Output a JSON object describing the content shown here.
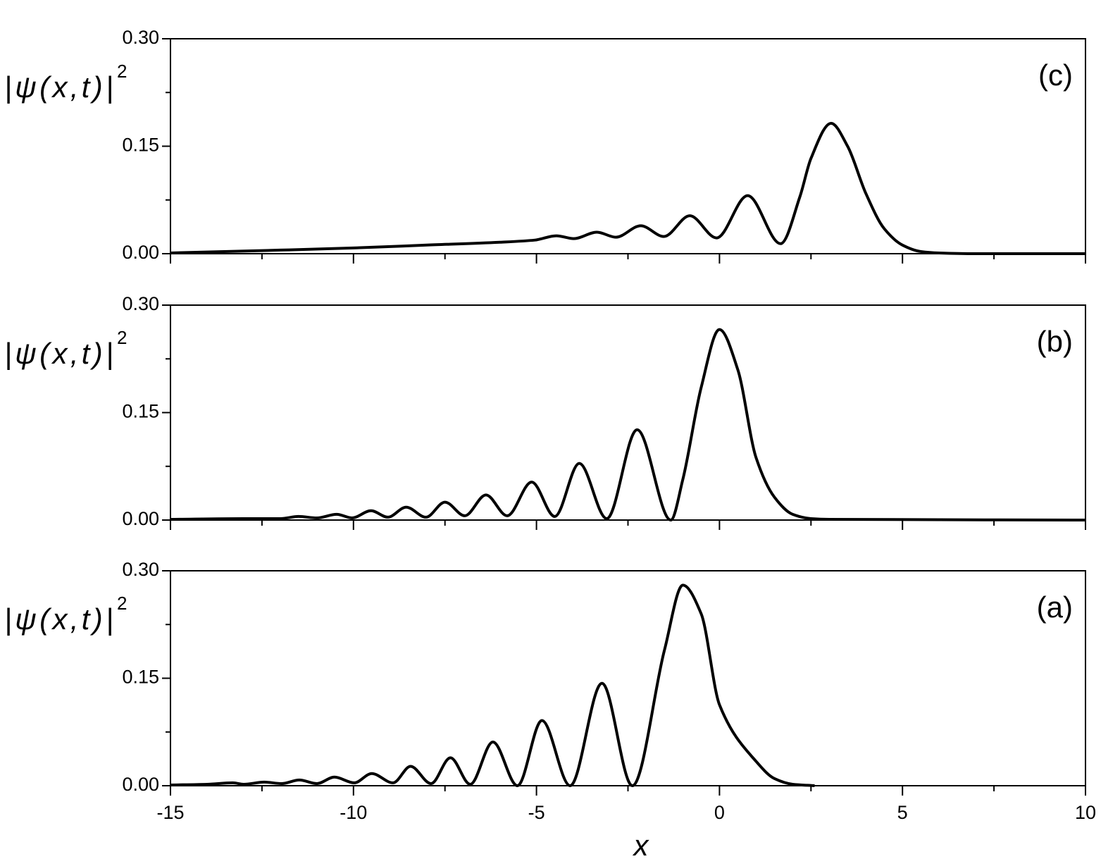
{
  "chart_data": [
    {
      "type": "line",
      "panel_label": "(c)",
      "y_label": "|ψ(x,t)|",
      "y_label_sup": "2",
      "color": "#000000",
      "xlim": [
        -15,
        10
      ],
      "xticks": [
        -15,
        -10,
        -5,
        0,
        5,
        10
      ],
      "xminor": [
        -12.5,
        -7.5,
        -2.5,
        2.5,
        7.5
      ],
      "xtick_labels": false,
      "ylim": [
        0,
        0.3
      ],
      "yticks": [
        {
          "value": 0,
          "label": "0.00"
        },
        {
          "value": 0.15,
          "label": "0.15"
        },
        {
          "value": 0.3,
          "label": "0.30"
        }
      ],
      "yminor": [
        0.075,
        0.225
      ],
      "x": [
        -15,
        -12,
        -10,
        -8,
        -6,
        -5.04,
        -4.46,
        -3.98,
        -3.35,
        -2.83,
        -2.15,
        -1.52,
        -0.81,
        -0.08,
        0.77,
        1.67,
        2.2,
        2.5,
        3.05,
        3.5,
        4,
        4.5,
        5,
        5.5,
        6,
        7,
        10
      ],
      "values": [
        0.001,
        0.005,
        0.008,
        0.012,
        0.016,
        0.019,
        0.025,
        0.021,
        0.03,
        0.023,
        0.039,
        0.024,
        0.053,
        0.022,
        0.081,
        0.014,
        0.08,
        0.133,
        0.182,
        0.15,
        0.084,
        0.035,
        0.012,
        0.003,
        0.001,
        0,
        0
      ]
    },
    {
      "type": "line",
      "panel_label": "(b)",
      "y_label": "|ψ(x,t)|",
      "y_label_sup": "2",
      "color": "#000000",
      "xlim": [
        -15,
        10
      ],
      "xticks": [
        -15,
        -10,
        -5,
        0,
        5,
        10
      ],
      "xminor": [
        -12.5,
        -7.5,
        -2.5,
        2.5,
        7.5
      ],
      "xtick_labels": false,
      "ylim": [
        0,
        0.3
      ],
      "yticks": [
        {
          "value": 0,
          "label": "0.00"
        },
        {
          "value": 0.15,
          "label": "0.15"
        },
        {
          "value": 0.3,
          "label": "0.30"
        }
      ],
      "yminor": [
        0.075,
        0.225
      ],
      "x": [
        -15,
        -13,
        -12,
        -11.5,
        -11,
        -10.46,
        -10.04,
        -9.52,
        -9.06,
        -8.56,
        -8.02,
        -7.5,
        -6.96,
        -6.38,
        -5.8,
        -5.13,
        -4.5,
        -3.83,
        -3.08,
        -2.25,
        -1.33,
        -1,
        -0.5,
        0,
        0.5,
        1,
        1.5,
        2,
        2.5,
        3,
        10
      ],
      "values": [
        0.001,
        0.002,
        0.002,
        0.005,
        0.003,
        0.008,
        0.003,
        0.013,
        0.004,
        0.018,
        0.004,
        0.025,
        0.006,
        0.035,
        0.006,
        0.053,
        0.005,
        0.079,
        0.002,
        0.126,
        0,
        0.057,
        0.185,
        0.266,
        0.21,
        0.087,
        0.032,
        0.008,
        0.002,
        0.001,
        0
      ]
    },
    {
      "type": "line",
      "panel_label": "(a)",
      "y_label": "|ψ(x,t)|",
      "y_label_sup": "2",
      "x_label": "x",
      "color": "#000000",
      "xlim": [
        -15,
        10
      ],
      "xticks": [
        -15,
        -10,
        -5,
        0,
        5,
        10
      ],
      "xminor": [
        -12.5,
        -7.5,
        -2.5,
        2.5,
        7.5
      ],
      "xtick_labels": true,
      "ylim": [
        0,
        0.3
      ],
      "yticks": [
        {
          "value": 0,
          "label": "0.00"
        },
        {
          "value": 0.15,
          "label": "0.15"
        },
        {
          "value": 0.3,
          "label": "0.30"
        }
      ],
      "yminor": [
        0.075,
        0.225
      ],
      "x": [
        -15,
        -14,
        -13.3,
        -13,
        -12.44,
        -11.96,
        -11.48,
        -11,
        -10.52,
        -9.98,
        -9.5,
        -8.92,
        -8.44,
        -7.88,
        -7.35,
        -6.81,
        -6.19,
        -5.52,
        -4.85,
        -4.08,
        -3.21,
        -2.38,
        -1.5,
        -1,
        -0.5,
        0,
        1,
        1.5,
        2,
        2.6
      ],
      "values": [
        0.001,
        0.002,
        0.004,
        0.002,
        0.005,
        0.003,
        0.008,
        0.003,
        0.012,
        0.004,
        0.017,
        0.004,
        0.027,
        0.003,
        0.039,
        0.002,
        0.061,
        0,
        0.091,
        0,
        0.143,
        0,
        0.19,
        0.28,
        0.24,
        0.113,
        0.034,
        0.01,
        0.002,
        0
      ]
    }
  ]
}
